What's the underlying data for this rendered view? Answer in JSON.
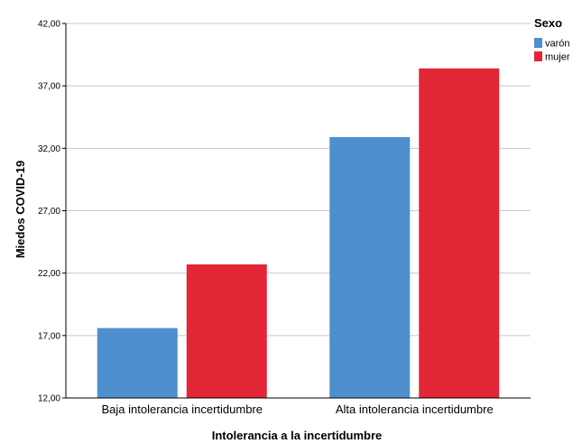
{
  "chart_data": {
    "type": "bar",
    "xlabel": "Intolerancia a la incertidumbre",
    "ylabel": "Miedos COVID-19",
    "categories": [
      "Baja intolerancia incertidumbre",
      "Alta intolerancia incertidumbre"
    ],
    "yticks": [
      "12,00",
      "17,00",
      "22,00",
      "27,00",
      "32,00",
      "37,00",
      "42,00"
    ],
    "ylim": [
      12,
      42
    ],
    "grid": true,
    "legend": {
      "title": "Sexo",
      "position": "top-right"
    },
    "series": [
      {
        "name": "varón",
        "color": "#4e8fd0",
        "values": [
          17.6,
          32.9
        ]
      },
      {
        "name": "mujer",
        "color": "#e32636",
        "values": [
          22.7,
          38.4
        ]
      }
    ]
  }
}
